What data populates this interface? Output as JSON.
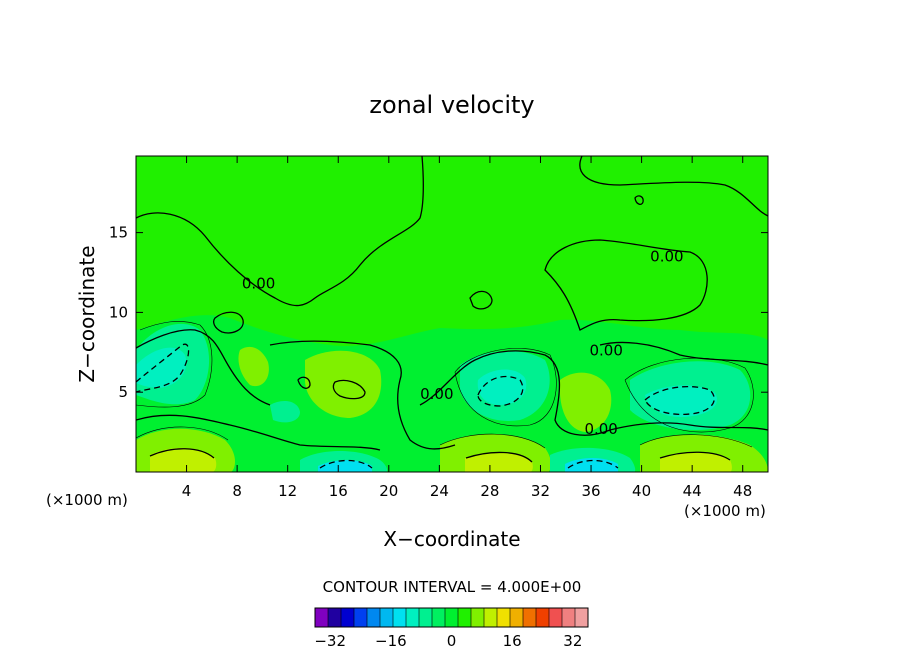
{
  "chart_data": {
    "type": "heatmap",
    "title": "zonal velocity",
    "xlabel": "X−coordinate",
    "ylabel": "Z−coordinate",
    "x_unit_left": "(×1000 m)",
    "x_unit_right": "(×1000 m)",
    "xlim": [
      0,
      50
    ],
    "ylim": [
      0,
      19.8
    ],
    "x_ticks": [
      4,
      8,
      12,
      16,
      20,
      24,
      28,
      32,
      36,
      40,
      44,
      48
    ],
    "y_ticks": [
      5,
      10,
      15
    ],
    "contour_interval_text": "CONTOUR INTERVAL = 4.000E+00",
    "contour_interval": 4.0,
    "contour_labels": [
      {
        "text": "0.00",
        "x": 9.7,
        "z": 11.8
      },
      {
        "text": "0.00",
        "x": 42.0,
        "z": 13.5
      },
      {
        "text": "0.00",
        "x": 37.2,
        "z": 7.6
      },
      {
        "text": "0.00",
        "x": 23.8,
        "z": 4.9
      },
      {
        "text": "0.00",
        "x": 36.8,
        "z": 2.7
      }
    ],
    "colorbar": {
      "min": -36,
      "max": 36,
      "step": 4,
      "tick_values": [
        -32,
        -16,
        0,
        16,
        32
      ],
      "tick_labels": [
        "−32",
        "−16",
        "0",
        "16",
        "32"
      ],
      "colors": [
        "#8000c0",
        "#2000a0",
        "#0000d0",
        "#0040f0",
        "#0088f0",
        "#00b8f0",
        "#00e0f0",
        "#00f0c0",
        "#00f090",
        "#00f060",
        "#00f030",
        "#20f000",
        "#80f000",
        "#c0f000",
        "#f0e000",
        "#f0b000",
        "#f07000",
        "#f04000",
        "#f05050",
        "#f08080",
        "#f0a0a0"
      ]
    },
    "grid": false
  }
}
